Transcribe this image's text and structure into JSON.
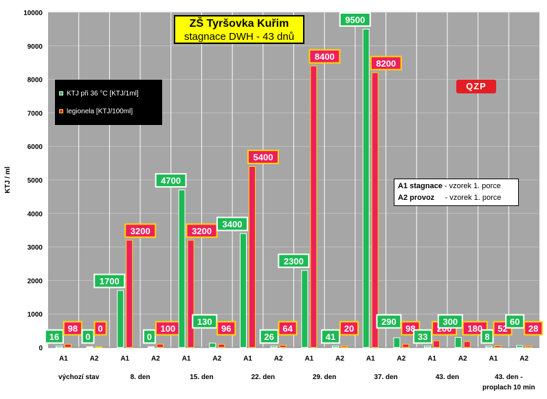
{
  "chart_data": {
    "type": "bar",
    "title": "ZŠ Tyršovka Kuřim",
    "subtitle": "stagnace DWH - 43 dnů",
    "ylabel": "KTJ / ml",
    "ylim": [
      0,
      10000
    ],
    "yticks": [
      "0",
      "1000",
      "2000",
      "3000",
      "4000",
      "5000",
      "6000",
      "7000",
      "8000",
      "9000",
      "10000"
    ],
    "grid": true,
    "legend_position": "top-left",
    "categories": [
      "A1",
      "A2",
      "A1",
      "A2",
      "A1",
      "A2",
      "A1",
      "A2",
      "A1",
      "A2",
      "A1",
      "A2",
      "A1",
      "A2",
      "A1",
      "A2"
    ],
    "groups": [
      {
        "label": "výchozí stav"
      },
      {
        "label": "8. den"
      },
      {
        "label": "15. den"
      },
      {
        "label": "22. den"
      },
      {
        "label": "29. den"
      },
      {
        "label": "37. den"
      },
      {
        "label": "43. den"
      },
      {
        "label": "43. den -\nproplach 10 min"
      }
    ],
    "series": [
      {
        "name": "KTJ při 36 °C [KTJ/1ml]",
        "color": "#1db954",
        "values": [
          16,
          0,
          1700,
          0,
          4700,
          130,
          3400,
          26,
          2300,
          41,
          9500,
          290,
          33,
          300,
          8,
          60
        ],
        "labels": [
          "16",
          "0",
          "1700",
          "0",
          "4700",
          "130",
          "3400",
          "26",
          "2300",
          "41",
          "9500",
          "290",
          "33",
          "300",
          "8",
          "60"
        ]
      },
      {
        "name": "legionela [KTJ/100ml]",
        "color": "#ee1f5b",
        "values": [
          98,
          0,
          3200,
          100,
          3200,
          96,
          5400,
          64,
          8400,
          20,
          8200,
          98,
          200,
          180,
          52,
          28
        ],
        "labels": [
          "98",
          "0",
          "3200",
          "100",
          "3200",
          "96",
          "5400",
          "64",
          "8400",
          "20",
          "8200",
          "98",
          "200",
          "180",
          "52",
          "28"
        ]
      }
    ],
    "legend": {
      "items": [
        "KTJ při 36 °C [KTJ/1ml]",
        "legionela [KTJ/100ml]"
      ]
    },
    "note": {
      "line1_key": "A1 stagnace",
      "line1_text": " - vzorek 1. porce",
      "line2_key": "A2 provoz",
      "line2_text": "     - vzorek 1. porce"
    },
    "logo_text": "QZP",
    "colors": {
      "plot_bg": "#a6a6a6",
      "label_border": "#ffd700",
      "green_label_border": "#ffffff"
    }
  }
}
